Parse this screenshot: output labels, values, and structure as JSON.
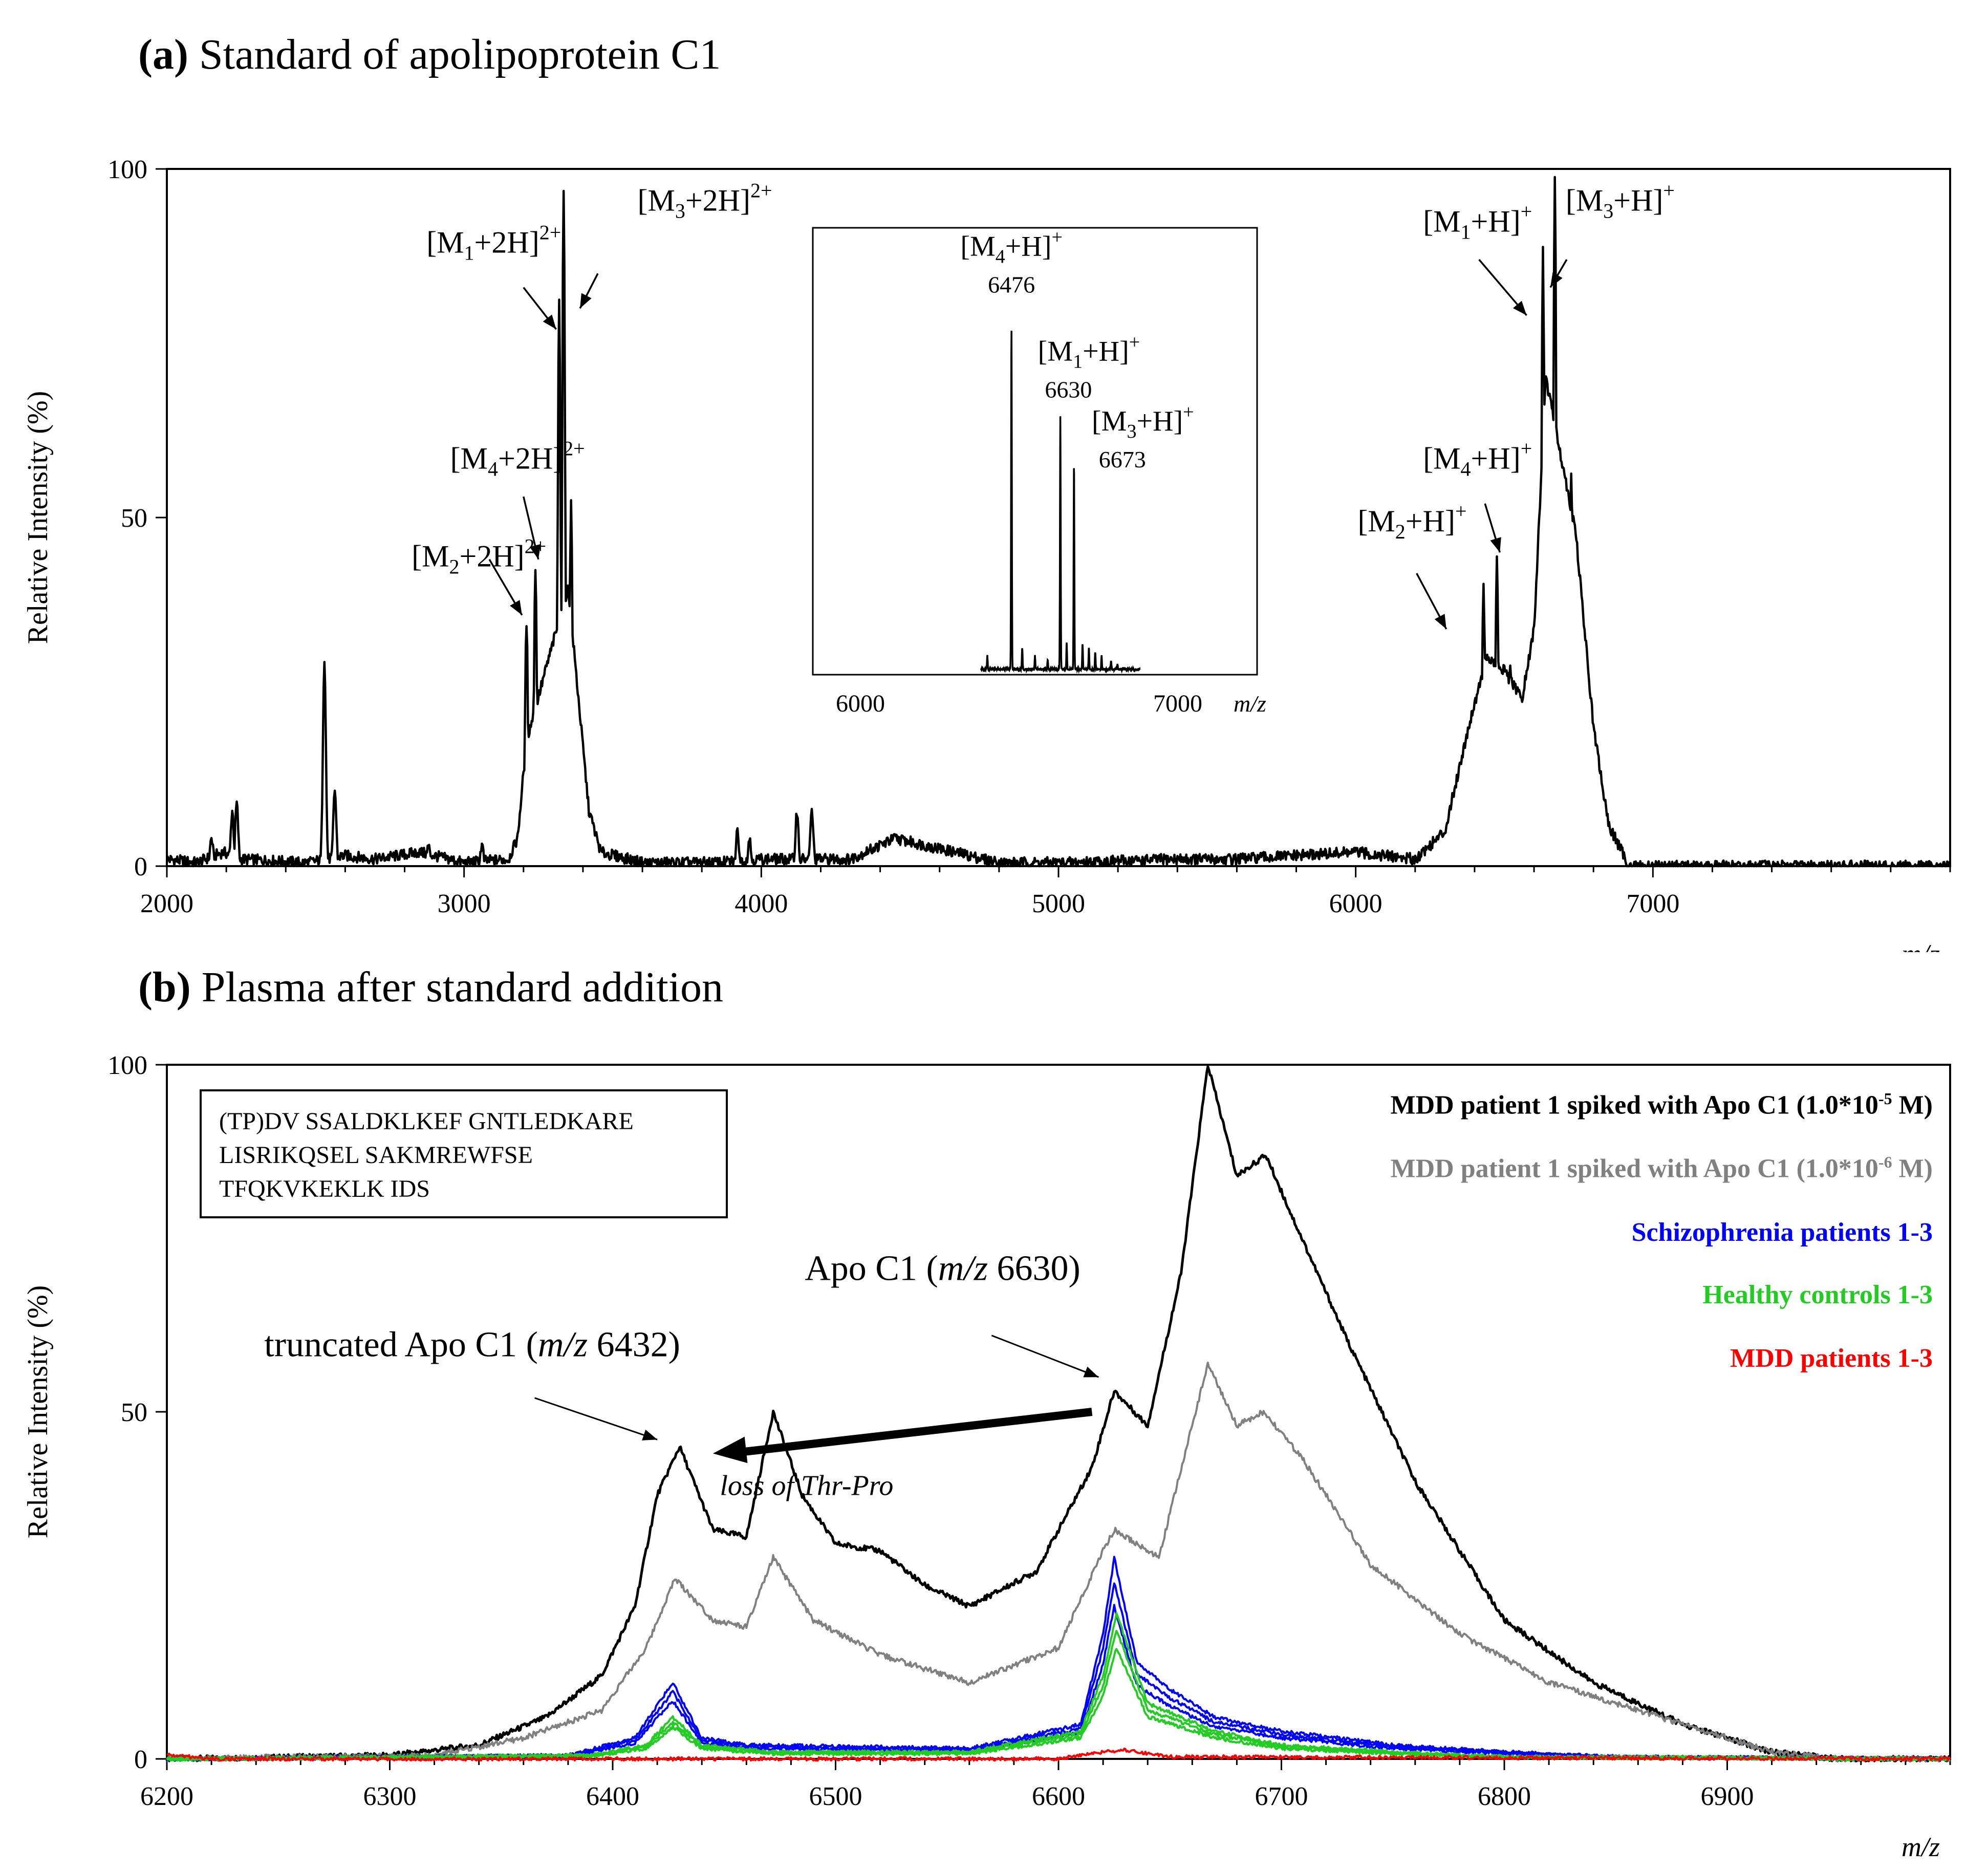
{
  "titles": {
    "a_prefix": "(a)",
    "a_text": "Standard of apolipoprotein C1",
    "b_prefix": "(b)",
    "b_text": "Plasma after standard addition"
  },
  "axis_common": {
    "ylabel": "Relative Intensity (%)",
    "xlabel": "m/z"
  },
  "inset": {
    "ticks": [
      "6000",
      "7000"
    ],
    "xlabel": "m/z"
  },
  "sequence": {
    "lines": [
      "(TP)DV SSALDKLKEF GNTLEDKARE",
      "LISRIKQSEL SAKMREWFSE",
      "TFQKVKEKLK IDS"
    ]
  },
  "legend": {
    "items": [
      {
        "base": "MDD patient 1 spiked with Apo C1 (1.0*10",
        "exp": "-5",
        "tail": " M)",
        "color": "#000000"
      },
      {
        "base": "MDD patient 1 spiked with Apo C1 (1.0*10",
        "exp": "-6",
        "tail": " M)",
        "color": "#808080"
      },
      {
        "base": "Schizophrenia patients 1-3",
        "exp": "",
        "tail": "",
        "color": "#0000ff"
      },
      {
        "base": "Healthy controls 1-3",
        "exp": "",
        "tail": "",
        "color": "#22cc22"
      },
      {
        "base": "MDD patients 1-3",
        "exp": "",
        "tail": "",
        "color": "#ff0000"
      }
    ]
  },
  "annotations_b": {
    "apo_c1_pre": "Apo C1 (",
    "apo_c1_mz": "m/z",
    "apo_c1_post": " 6630)",
    "trunc_pre": "truncated Apo C1 (",
    "trunc_mz": "m/z",
    "trunc_post": " 6432)",
    "loss": "loss of Thr-Pro"
  },
  "chart_data": [
    {
      "id": "a",
      "type": "line",
      "title": "Standard of apolipoprotein C1",
      "xlabel": "m/z",
      "ylabel": "Relative Intensity (%)",
      "xlim": [
        2000,
        8000
      ],
      "ylim": [
        0,
        100
      ],
      "xticks": [
        2000,
        3000,
        4000,
        5000,
        6000,
        7000
      ],
      "yticks": [
        0,
        50,
        100
      ],
      "color": "#000000",
      "baseline": [
        [
          2000,
          1
        ],
        [
          2100,
          0.5
        ],
        [
          2190,
          2
        ],
        [
          2250,
          1
        ],
        [
          2470,
          0.5
        ],
        [
          2600,
          1.5
        ],
        [
          2700,
          1
        ],
        [
          2850,
          2
        ],
        [
          3000,
          0.5
        ],
        [
          3150,
          1
        ],
        [
          3180,
          4
        ],
        [
          3210,
          18
        ],
        [
          3350,
          40
        ],
        [
          3420,
          8
        ],
        [
          3460,
          2
        ],
        [
          3600,
          0.5
        ],
        [
          3850,
          0.5
        ],
        [
          4000,
          1
        ],
        [
          4300,
          1
        ],
        [
          4450,
          4
        ],
        [
          4550,
          3
        ],
        [
          4800,
          0.5
        ],
        [
          5000,
          0.5
        ],
        [
          5400,
          1
        ],
        [
          5600,
          1
        ],
        [
          6000,
          2
        ],
        [
          6200,
          1
        ],
        [
          6300,
          5
        ],
        [
          6380,
          20
        ],
        [
          6440,
          30
        ],
        [
          6500,
          28
        ],
        [
          6560,
          24
        ],
        [
          6600,
          34
        ],
        [
          6640,
          70
        ],
        [
          6740,
          48
        ],
        [
          6800,
          20
        ],
        [
          6850,
          6
        ],
        [
          6920,
          0
        ],
        [
          8000,
          0
        ]
      ],
      "peaks": [
        [
          2150,
          4
        ],
        [
          2220,
          8
        ],
        [
          2235,
          9
        ],
        [
          2530,
          30
        ],
        [
          2565,
          11
        ],
        [
          2880,
          3
        ],
        [
          3060,
          3
        ],
        [
          3210,
          35
        ],
        [
          3240,
          43
        ],
        [
          3270,
          26
        ],
        [
          3320,
          82
        ],
        [
          3335,
          97
        ],
        [
          3360,
          52
        ],
        [
          3920,
          5
        ],
        [
          3960,
          4
        ],
        [
          4120,
          8
        ],
        [
          4170,
          8
        ],
        [
          6430,
          40
        ],
        [
          6475,
          44
        ],
        [
          6520,
          28
        ],
        [
          6630,
          89
        ],
        [
          6670,
          99
        ],
        [
          6725,
          57
        ]
      ],
      "labels": [
        {
          "n": "2",
          "charge": "2+",
          "two": true,
          "x": 3050,
          "y": 43
        },
        {
          "n": "4",
          "charge": "2+",
          "two": true,
          "x": 3180,
          "y": 57
        },
        {
          "n": "1",
          "charge": "2+",
          "two": true,
          "x": 3100,
          "y": 88
        },
        {
          "n": "3",
          "charge": "2+",
          "two": true,
          "x": 3810,
          "y": 94
        },
        {
          "n": "2",
          "charge": "+",
          "two": false,
          "x": 6190,
          "y": 48
        },
        {
          "n": "4",
          "charge": "+",
          "two": false,
          "x": 6410,
          "y": 57
        },
        {
          "n": "1",
          "charge": "+",
          "two": false,
          "x": 6410,
          "y": 91
        },
        {
          "n": "3",
          "charge": "+",
          "two": false,
          "x": 6890,
          "y": 94
        }
      ],
      "inset": {
        "xlim": [
          5850,
          7250
        ],
        "xticks": [
          6000,
          7000
        ],
        "peaks": [
          [
            6476,
            78
          ],
          [
            6630,
            58
          ],
          [
            6673,
            47
          ],
          [
            6400,
            3
          ],
          [
            6510,
            5
          ],
          [
            6550,
            3
          ],
          [
            6590,
            2
          ],
          [
            6650,
            6
          ],
          [
            6700,
            6
          ],
          [
            6720,
            5
          ],
          [
            6740,
            4
          ],
          [
            6760,
            3
          ],
          [
            6790,
            2
          ],
          [
            6810,
            1
          ]
        ],
        "labels": [
          {
            "n": "4",
            "value": "6476",
            "x": 6476,
            "y": 95
          },
          {
            "n": "1",
            "value": "6630",
            "x": 6720,
            "y": 71
          },
          {
            "n": "3",
            "value": "6673",
            "x": 6890,
            "y": 55
          }
        ]
      }
    },
    {
      "id": "b",
      "type": "line",
      "title": "Plasma after standard addition",
      "xlabel": "m/z",
      "ylabel": "Relative Intensity (%)",
      "xlim": [
        6200,
        7000
      ],
      "ylim": [
        0,
        100
      ],
      "xticks": [
        6200,
        6300,
        6400,
        6500,
        6600,
        6700,
        6800,
        6900
      ],
      "yticks": [
        0,
        50,
        100
      ],
      "series": [
        {
          "name": "MDD patient 1 spiked with Apo C1 (1.0*10^-5 M)",
          "color": "#000000",
          "points": [
            [
              6200,
              0
            ],
            [
              6300,
              0.5
            ],
            [
              6340,
              2
            ],
            [
              6370,
              6
            ],
            [
              6395,
              12
            ],
            [
              6410,
              22
            ],
            [
              6420,
              38
            ],
            [
              6430,
              45
            ],
            [
              6445,
              33
            ],
            [
              6460,
              32
            ],
            [
              6472,
              50
            ],
            [
              6485,
              38
            ],
            [
              6500,
              31
            ],
            [
              6520,
              30
            ],
            [
              6540,
              25
            ],
            [
              6560,
              22
            ],
            [
              6590,
              27
            ],
            [
              6615,
              42
            ],
            [
              6625,
              53
            ],
            [
              6640,
              48
            ],
            [
              6655,
              70
            ],
            [
              6667,
              100
            ],
            [
              6680,
              84
            ],
            [
              6693,
              87
            ],
            [
              6705,
              78
            ],
            [
              6730,
              60
            ],
            [
              6760,
              40
            ],
            [
              6800,
              20
            ],
            [
              6840,
              11
            ],
            [
              6880,
              5
            ],
            [
              6920,
              1
            ],
            [
              6950,
              0
            ],
            [
              7000,
              0
            ]
          ]
        },
        {
          "name": "MDD patient 1 spiked with Apo C1 (1.0*10^-6 M)",
          "color": "#808080",
          "points": [
            [
              6200,
              0
            ],
            [
              6320,
              0.5
            ],
            [
              6360,
              3
            ],
            [
              6395,
              7
            ],
            [
              6415,
              16
            ],
            [
              6428,
              26
            ],
            [
              6445,
              20
            ],
            [
              6460,
              19
            ],
            [
              6472,
              29
            ],
            [
              6490,
              20
            ],
            [
              6520,
              15
            ],
            [
              6560,
              11
            ],
            [
              6600,
              16
            ],
            [
              6620,
              30
            ],
            [
              6625,
              33
            ],
            [
              6645,
              29
            ],
            [
              6667,
              57
            ],
            [
              6680,
              48
            ],
            [
              6692,
              50
            ],
            [
              6710,
              43
            ],
            [
              6740,
              28
            ],
            [
              6780,
              18
            ],
            [
              6820,
              11
            ],
            [
              6870,
              6
            ],
            [
              6920,
              1
            ],
            [
              6950,
              0
            ],
            [
              7000,
              0
            ]
          ]
        },
        {
          "name": "Schizophrenia patients 1-3",
          "color": "#0000ff",
          "points": [
            [
              6200,
              0
            ],
            [
              6380,
              0.5
            ],
            [
              6410,
              3
            ],
            [
              6427,
              11
            ],
            [
              6440,
              3
            ],
            [
              6460,
              2
            ],
            [
              6560,
              1.5
            ],
            [
              6610,
              5
            ],
            [
              6620,
              18
            ],
            [
              6625,
              29
            ],
            [
              6635,
              14
            ],
            [
              6650,
              10
            ],
            [
              6670,
              6
            ],
            [
              6700,
              4
            ],
            [
              6750,
              2
            ],
            [
              6800,
              1
            ],
            [
              6850,
              0.3
            ],
            [
              7000,
              0
            ]
          ]
        },
        {
          "name": "Healthy controls 1-3",
          "color": "#22cc22",
          "points": [
            [
              6200,
              0
            ],
            [
              6390,
              0.5
            ],
            [
              6415,
              2
            ],
            [
              6427,
              6
            ],
            [
              6440,
              2
            ],
            [
              6470,
              1
            ],
            [
              6560,
              1
            ],
            [
              6610,
              4
            ],
            [
              6620,
              12
            ],
            [
              6626,
              21
            ],
            [
              6640,
              8
            ],
            [
              6670,
              4
            ],
            [
              6700,
              2
            ],
            [
              6750,
              1
            ],
            [
              6800,
              0.3
            ],
            [
              7000,
              0
            ]
          ]
        },
        {
          "name": "MDD patients 1-3",
          "color": "#ff0000",
          "points": [
            [
              6200,
              0.6
            ],
            [
              6220,
              0
            ],
            [
              6600,
              0
            ],
            [
              6620,
              1
            ],
            [
              6630,
              1.3
            ],
            [
              6650,
              0.3
            ],
            [
              7000,
              0
            ]
          ]
        }
      ]
    }
  ]
}
